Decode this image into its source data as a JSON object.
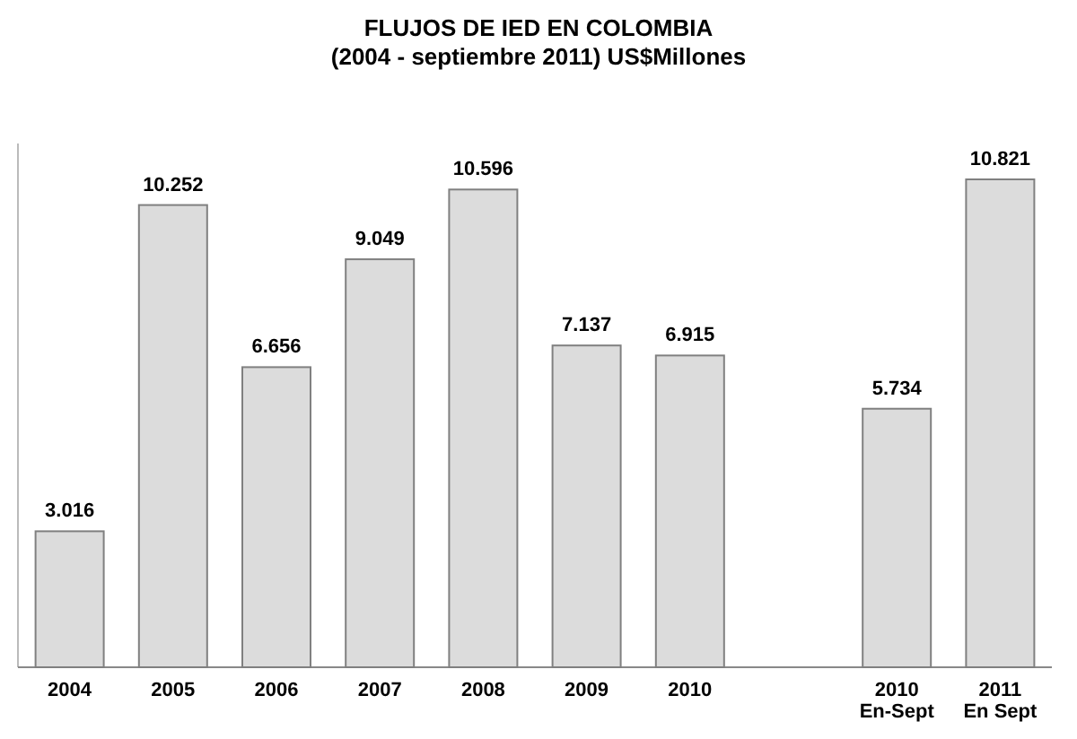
{
  "chart_data": {
    "type": "bar",
    "title": "FLUJOS DE IED EN COLOMBIA\n(2004 - septiembre 2011) US$Millones",
    "categories": [
      "2004",
      "2005",
      "2006",
      "2007",
      "2008",
      "2009",
      "2010",
      null,
      "2010 En-Sept",
      "2011 En Sept"
    ],
    "values": [
      3016,
      10252,
      6656,
      9049,
      10596,
      7137,
      6915,
      null,
      5734,
      10821
    ],
    "value_labels": [
      "3.016",
      "10.252",
      "6.656",
      "9.049",
      "10.596",
      "7.137",
      "6.915",
      null,
      "5.734",
      "10.821"
    ],
    "color": "#dcdcdc"
  }
}
